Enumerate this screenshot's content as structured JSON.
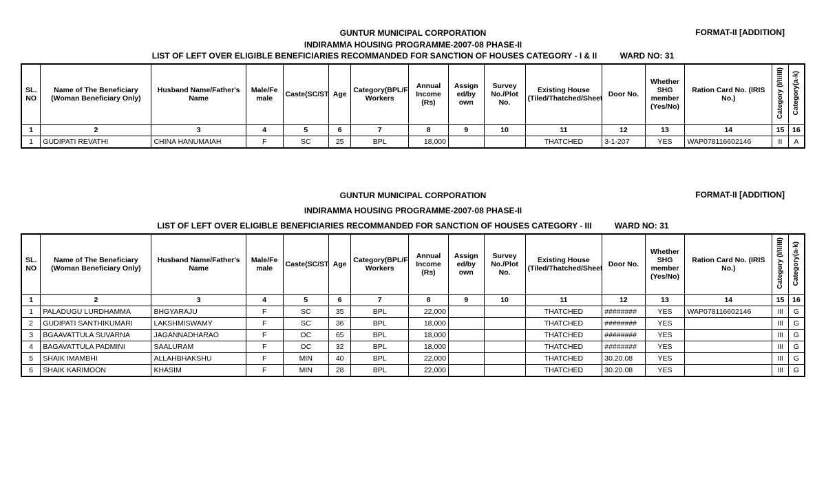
{
  "common": {
    "org": "GUNTUR MUNICIPAL CORPORATION",
    "programme": "INDIRAMMA HOUSING PROGRAMME-2007-08   PHASE-II",
    "format": "FORMAT-II [ADDITION]",
    "ward_label": "WARD NO: 31",
    "columns": [
      "SL. NO",
      "Name of The Beneficiary (Woman Beneficiary Only)",
      "Husband Name/Father's Name",
      "Male/Fe male",
      "Caste(SC/ST/BC/MIN/EBC)",
      "Age",
      "Category(BPL/Fire/PHC/Fishermen/Weavers/Beedi Workers",
      "Annual Income (Rs)",
      "Assign ed/by own",
      "Survey No./Plot No.",
      "Existing House (Tiled/Thatched/Sheet/Terrace)",
      "Door No.",
      "Whether SHG member (Yes/No)",
      "Ration Card No. (IRIS No.)",
      "Category (I/II/III)",
      "Category(a-k)"
    ],
    "colnums": [
      "1",
      "2",
      "3",
      "4",
      "5",
      "6",
      "7",
      "8",
      "9",
      "10",
      "11",
      "12",
      "13",
      "14",
      "15",
      "16"
    ]
  },
  "section1": {
    "list_title": "LIST OF LEFT OVER ELIGIBLE  BENEFICIARIES RECOMMANDED FOR SANCTION OF HOUSES CATEGORY - I & II",
    "rows": [
      {
        "sl": "1",
        "name": "GUDIPATI REVATHI",
        "husband": "CHINA HANUMAIAH",
        "sex": "F",
        "caste": "SC",
        "age": "25",
        "cat": "BPL",
        "income": "18,000",
        "assign": "",
        "survey": "",
        "house": "THATCHED",
        "door": "3-1-207",
        "shg": "YES",
        "ration": "WAP078116602146",
        "c15": "II",
        "c16": "A"
      }
    ]
  },
  "section2": {
    "list_title": "LIST OF LEFT OVER ELIGIBLE  BENEFICIARIES RECOMMANDED FOR SANCTION OF HOUSES CATEGORY - III",
    "rows": [
      {
        "sl": "1",
        "name": "PALADUGU LURDHAMMA",
        "husband": "BHGYARAJU",
        "sex": "F",
        "caste": "SC",
        "age": "35",
        "cat": "BPL",
        "income": "22,000",
        "assign": "",
        "survey": "",
        "house": "THATCHED",
        "door": "########",
        "shg": "YES",
        "ration": "WAP078116602146",
        "c15": "III",
        "c16": "G"
      },
      {
        "sl": "2",
        "name": "GUDIPATI SANTHIKUMARI",
        "husband": "LAKSHMISWAMY",
        "sex": "F",
        "caste": "SC",
        "age": "36",
        "cat": "BPL",
        "income": "18,000",
        "assign": "",
        "survey": "",
        "house": "THATCHED",
        "door": "########",
        "shg": "YES",
        "ration": "",
        "c15": "III",
        "c16": "G"
      },
      {
        "sl": "3",
        "name": "BGAAVATTULA SUVARNA",
        "husband": "JAGANNADHARAO",
        "sex": "F",
        "caste": "OC",
        "age": "65",
        "cat": "BPL",
        "income": "18,000",
        "assign": "",
        "survey": "",
        "house": "THATCHED",
        "door": "########",
        "shg": "YES",
        "ration": "",
        "c15": "III",
        "c16": "G"
      },
      {
        "sl": "4",
        "name": "BAGAVATTULA PADMINI",
        "husband": "SAALURAM",
        "sex": "F",
        "caste": "OC",
        "age": "32",
        "cat": "BPL",
        "income": "18,000",
        "assign": "",
        "survey": "",
        "house": "THATCHED",
        "door": "########",
        "shg": "YES",
        "ration": "",
        "c15": "III",
        "c16": "G"
      },
      {
        "sl": "5",
        "name": "SHAIK IMAMBHI",
        "husband": "ALLAHBHAKSHU",
        "sex": "F",
        "caste": "MIN",
        "age": "40",
        "cat": "BPL",
        "income": "22,000",
        "assign": "",
        "survey": "",
        "house": "THATCHED",
        "door": "30.20.08",
        "shg": "YES",
        "ration": "",
        "c15": "III",
        "c16": "G"
      },
      {
        "sl": "6",
        "name": "SHAIK KARIMOON",
        "husband": "KHASIM",
        "sex": "F",
        "caste": "MIN",
        "age": "28",
        "cat": "BPL",
        "income": "22,000",
        "assign": "",
        "survey": "",
        "house": "THATCHED",
        "door": "30.20.08",
        "shg": "YES",
        "ration": "",
        "c15": "III",
        "c16": "G"
      }
    ]
  }
}
